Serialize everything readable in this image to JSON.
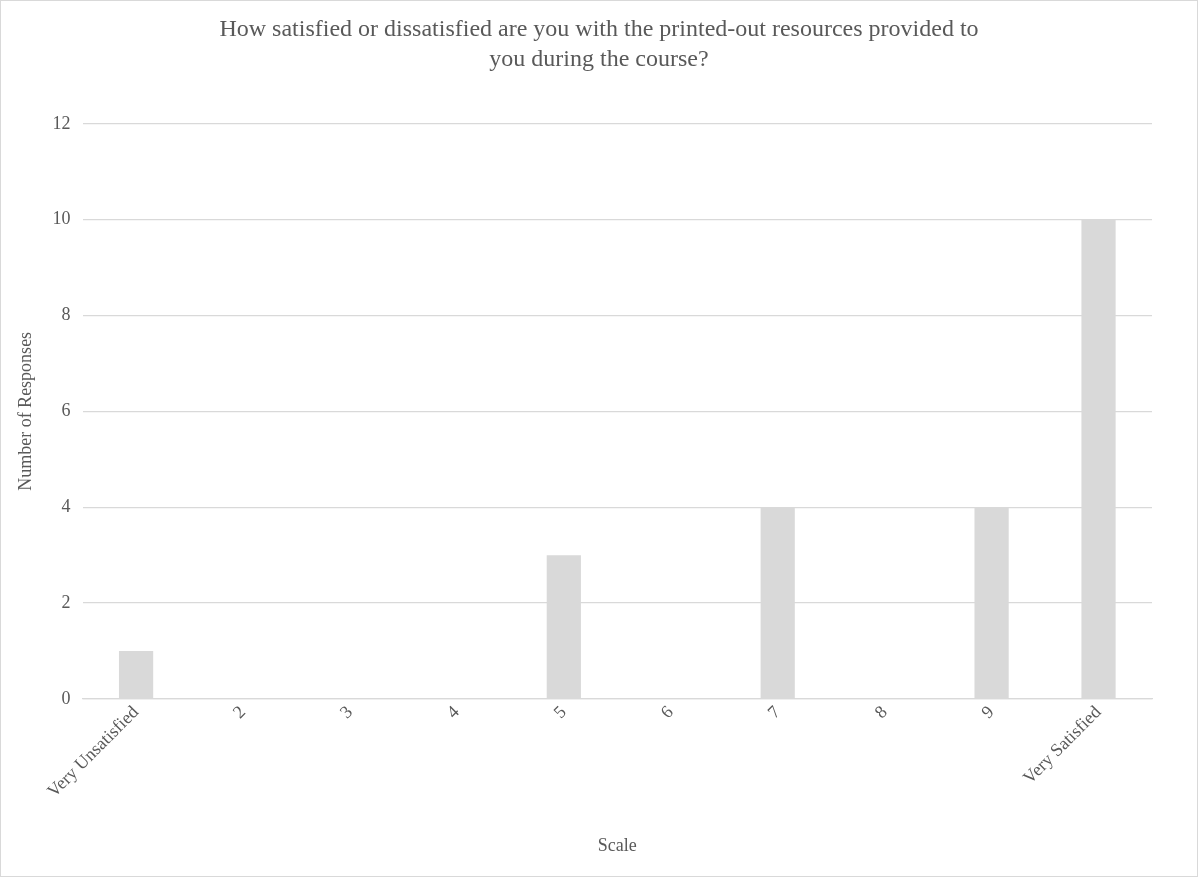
{
  "chart_data": {
    "type": "bar",
    "title": "How satisfied or dissatisfied are you with the printed-out resources provided to you during the course?",
    "xlabel": "Scale",
    "ylabel": "Number of Responses",
    "categories": [
      "Very Unsatisfied",
      "2",
      "3",
      "4",
      "5",
      "6",
      "7",
      "8",
      "9",
      "Very Satisfied"
    ],
    "values": [
      1,
      0,
      0,
      0,
      3,
      0,
      4,
      0,
      4,
      10
    ],
    "color": "#d9d9d9",
    "ylim": [
      0,
      12
    ],
    "yticks": [
      0,
      2,
      4,
      6,
      8,
      10,
      12
    ],
    "grid": "y",
    "legend": false
  }
}
